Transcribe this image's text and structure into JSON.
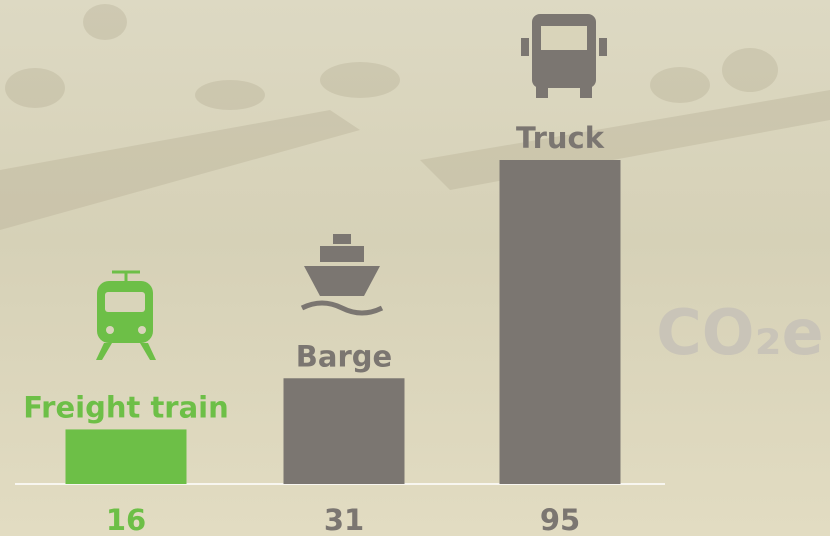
{
  "chart_data": {
    "type": "bar",
    "categories": [
      "Freight train",
      "Barge",
      "Truck"
    ],
    "values": [
      16,
      31,
      95
    ],
    "colors": [
      "#6dbf47",
      "#7b7671",
      "#7b7671"
    ],
    "annotation": "CO₂e"
  }
}
